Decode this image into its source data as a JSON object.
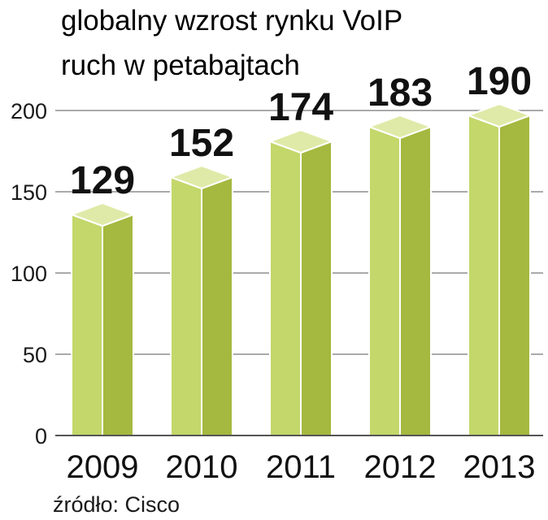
{
  "title": "globalny wzrost rynku VoIP",
  "subtitle": "ruch w petabajtach",
  "source": "źródło: Cisco",
  "chart_data": {
    "type": "bar",
    "title": "globalny wzrost rynku VoIP",
    "subtitle": "ruch w petabajtach",
    "categories": [
      "2009",
      "2010",
      "2011",
      "2012",
      "2013"
    ],
    "values": [
      129,
      152,
      174,
      183,
      190
    ],
    "value_labels": [
      "129",
      "152",
      "174",
      "183",
      "190"
    ],
    "yticks": [
      "0",
      "50",
      "100",
      "150",
      "200"
    ],
    "ylim": [
      0,
      200
    ],
    "xlabel": "",
    "ylabel": "",
    "grid": true,
    "legend": "none",
    "style": "3d-box",
    "colors": {
      "front": "#c3d76a",
      "side": "#a5b83f",
      "top": "#dfeaa8",
      "edge": "#ffffff",
      "grid": "#8e8e8e"
    }
  }
}
